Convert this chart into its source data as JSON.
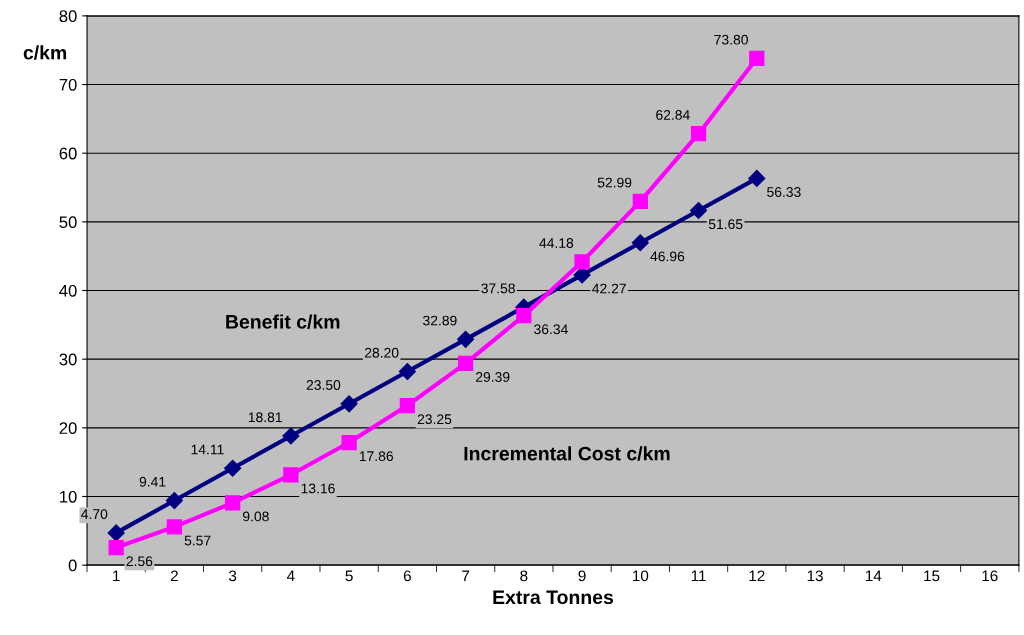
{
  "chart_data": {
    "type": "line",
    "xlabel": "Extra Tonnes",
    "ylabel": "c/km",
    "categories": [
      "1",
      "2",
      "3",
      "4",
      "5",
      "6",
      "7",
      "8",
      "9",
      "10",
      "11",
      "12",
      "13",
      "14",
      "15",
      "16"
    ],
    "series": [
      {
        "color": "#000080",
        "marker": "diamond",
        "values": [
          4.7,
          9.41,
          14.11,
          18.81,
          23.5,
          28.2,
          32.89,
          37.58,
          42.27,
          46.96,
          51.65,
          56.33,
          null,
          null,
          null,
          null
        ],
        "value_labels": [
          "4.70",
          "9.41",
          "14.11",
          "18.81",
          "23.50",
          "28.20",
          "32.89",
          "37.58",
          "42.27",
          "46.96",
          "51.65",
          "56.33",
          null,
          null,
          null,
          null
        ]
      },
      {
        "color": "#ff00ff",
        "marker": "square",
        "values": [
          2.56,
          5.57,
          9.08,
          13.16,
          17.86,
          23.25,
          29.39,
          36.34,
          44.18,
          52.99,
          62.84,
          73.8,
          null,
          null,
          null,
          null
        ],
        "value_labels": [
          "2.56",
          "5.57",
          "9.08",
          "13.16",
          "17.86",
          "23.25",
          "29.39",
          "36.34",
          "44.18",
          "52.99",
          "62.84",
          "73.80",
          null,
          null,
          null,
          null
        ]
      }
    ],
    "annotations": [
      "Benefit c/km",
      "Incremental Cost c/km"
    ],
    "ylim": [
      0,
      80
    ],
    "yticks": [
      0,
      10,
      20,
      30,
      40,
      50,
      60,
      70,
      80
    ],
    "grid": "y",
    "legend": false
  }
}
